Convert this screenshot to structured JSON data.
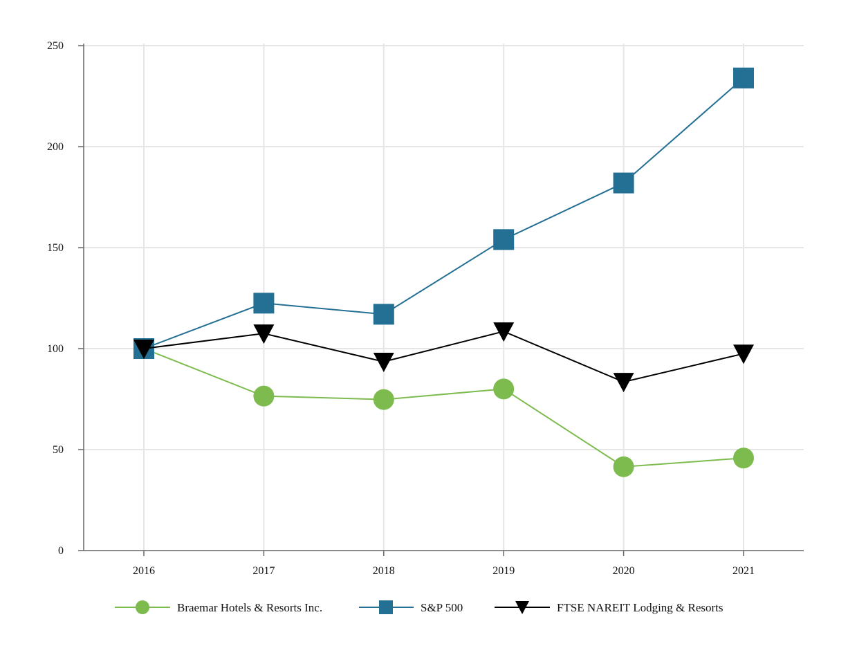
{
  "chart_data": {
    "type": "line",
    "title": "",
    "xlabel": "",
    "ylabel": "",
    "categories": [
      "2016",
      "2017",
      "2018",
      "2019",
      "2020",
      "2021"
    ],
    "ylim": [
      0,
      250
    ],
    "yticks": [
      0,
      50,
      100,
      150,
      200,
      250
    ],
    "grid": true,
    "legend": "bottom",
    "series": [
      {
        "name": "Braemar Hotels & Resorts Inc.",
        "marker": "circle",
        "color": "#7dbb4e",
        "values": [
          100,
          76.5,
          74.8,
          80,
          41.5,
          45.8
        ]
      },
      {
        "name": "S&P 500",
        "marker": "square",
        "color": "#246f94",
        "values": [
          100,
          122.5,
          117,
          154,
          182,
          234
        ]
      },
      {
        "name": "FTSE NAREIT Lodging & Resorts",
        "marker": "triangle-down",
        "color": "#000000",
        "values": [
          100,
          107.5,
          93.5,
          108.5,
          83.5,
          97.5
        ]
      }
    ]
  }
}
